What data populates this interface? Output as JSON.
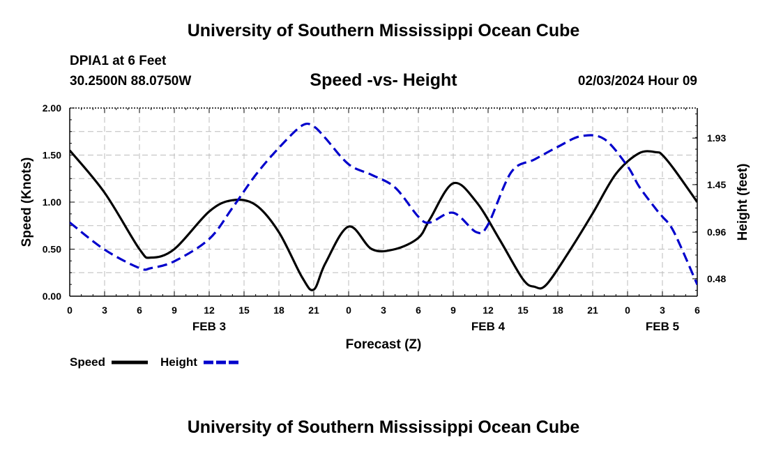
{
  "header": {
    "title": "University of Southern Mississippi Ocean Cube",
    "station": "DPIA1 at 6 Feet",
    "coordinates": "30.2500N  88.0750W",
    "subtitle": "Speed -vs- Height",
    "datetime": "02/03/2024 Hour 09"
  },
  "footer": {
    "title": "University of Southern Mississippi Ocean Cube"
  },
  "colors": {
    "speed": "#000000",
    "height": "#0000cc",
    "grid": "#bbbbbb"
  },
  "chart_data": {
    "type": "line",
    "title": "Speed -vs- Height",
    "xlabel": "Forecast (Z)",
    "ylabel": "Speed (Knots)",
    "y2label": "Height (feet)",
    "x_range": [
      0,
      54
    ],
    "x_ticks": [
      0,
      3,
      6,
      9,
      12,
      15,
      18,
      21,
      24,
      27,
      30,
      33,
      36,
      39,
      42,
      45,
      48,
      51,
      54
    ],
    "x_tick_labels": [
      "0",
      "3",
      "6",
      "9",
      "12",
      "15",
      "18",
      "21",
      "0",
      "3",
      "6",
      "9",
      "12",
      "15",
      "18",
      "21",
      "0",
      "3",
      "6"
    ],
    "date_labels": [
      {
        "label": "FEB 3",
        "x": 12
      },
      {
        "label": "FEB 4",
        "x": 36
      },
      {
        "label": "FEB 5",
        "x": 51
      }
    ],
    "ylim": [
      0,
      2
    ],
    "y_ticks": [
      0,
      0.5,
      1,
      1.5,
      2
    ],
    "y_tick_labels": [
      "0.00",
      "0.50",
      "1.00",
      "1.50",
      "2.00"
    ],
    "y2lim": [
      0.3,
      2.24
    ],
    "y2_ticks": [
      0.48,
      0.96,
      1.45,
      1.93
    ],
    "y2_tick_labels": [
      "0.48",
      "0.96",
      "1.45",
      "1.93"
    ],
    "legend": [
      {
        "name": "Speed",
        "style": "solid"
      },
      {
        "name": "Height",
        "style": "dashed"
      }
    ],
    "series": [
      {
        "name": "Speed",
        "axis": "left",
        "x": [
          0,
          3,
          6,
          7,
          9,
          12,
          14,
          16,
          18,
          20,
          21,
          22,
          24,
          26,
          28,
          30,
          31,
          33,
          35,
          37,
          39,
          40,
          41,
          43,
          45,
          47,
          49,
          50.5,
          51,
          52,
          54
        ],
        "values": [
          1.55,
          1.1,
          0.5,
          0.41,
          0.5,
          0.9,
          1.02,
          0.97,
          0.68,
          0.2,
          0.07,
          0.35,
          0.74,
          0.5,
          0.5,
          0.62,
          0.82,
          1.2,
          1.0,
          0.6,
          0.18,
          0.1,
          0.12,
          0.48,
          0.88,
          1.3,
          1.52,
          1.53,
          1.5,
          1.35,
          1.0
        ]
      },
      {
        "name": "Height",
        "axis": "right",
        "x": [
          0,
          3,
          6,
          7,
          9,
          12,
          14,
          16,
          18,
          20,
          21,
          22,
          24,
          26,
          28,
          30,
          31,
          33,
          35,
          36,
          38,
          40,
          42,
          44,
          46,
          48,
          49,
          50.5,
          51,
          52,
          54
        ],
        "values": [
          1.06,
          0.78,
          0.59,
          0.59,
          0.66,
          0.89,
          1.21,
          1.55,
          1.83,
          2.06,
          2.05,
          1.93,
          1.66,
          1.55,
          1.42,
          1.12,
          1.06,
          1.16,
          0.96,
          1.04,
          1.58,
          1.71,
          1.84,
          1.95,
          1.92,
          1.64,
          1.43,
          1.19,
          1.12,
          0.96,
          0.42
        ]
      }
    ]
  }
}
